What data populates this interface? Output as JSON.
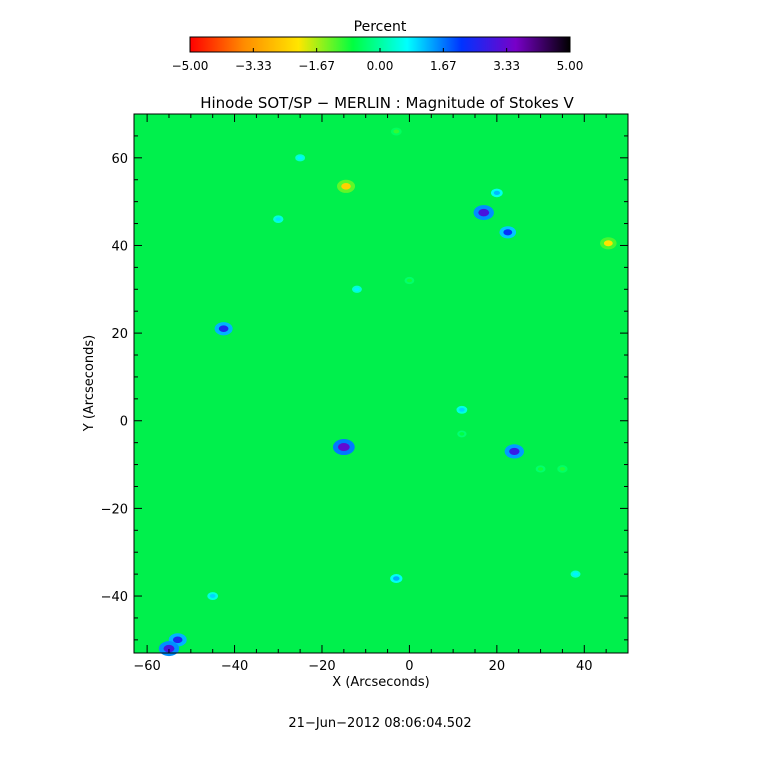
{
  "chart_data": {
    "type": "heatmap",
    "title": "Hinode SOT/SP − MERLIN : Magnitude of Stokes V",
    "xlabel": "X (Arcseconds)",
    "ylabel": "Y (Arcseconds)",
    "xlim": [
      -63,
      50
    ],
    "ylim": [
      -53,
      70
    ],
    "x_ticks": [
      -60,
      -40,
      -20,
      0,
      20,
      40
    ],
    "x_tick_labels": [
      "−60",
      "−40",
      "−20",
      "0",
      "20",
      "40"
    ],
    "y_ticks": [
      -40,
      -20,
      0,
      20,
      40,
      60
    ],
    "y_tick_labels": [
      "−40",
      "−20",
      "0",
      "20",
      "40",
      "60"
    ],
    "background_value": 0.0,
    "features": [
      {
        "x": -15,
        "y": -6,
        "value": 3.3
      },
      {
        "x": 17,
        "y": 47.5,
        "value": 3.0
      },
      {
        "x": 24,
        "y": -7,
        "value": 2.8
      },
      {
        "x": 22.5,
        "y": 43,
        "value": 2.2
      },
      {
        "x": -42.5,
        "y": 21,
        "value": 2.5
      },
      {
        "x": -14.5,
        "y": 53.5,
        "value": -2.5
      },
      {
        "x": 45.5,
        "y": 40.5,
        "value": -2.2
      },
      {
        "x": -53,
        "y": -50,
        "value": 2.5
      },
      {
        "x": -55,
        "y": -52,
        "value": 3.0
      },
      {
        "x": -3,
        "y": -36,
        "value": 1.3
      },
      {
        "x": 12,
        "y": 2.5,
        "value": 1.0
      },
      {
        "x": 20,
        "y": 52,
        "value": 1.2
      },
      {
        "x": -30,
        "y": 46,
        "value": 0.9
      },
      {
        "x": -25,
        "y": 60,
        "value": 0.8
      },
      {
        "x": -12,
        "y": 30,
        "value": 0.8
      },
      {
        "x": 30,
        "y": -11,
        "value": -0.8
      },
      {
        "x": 35,
        "y": -11,
        "value": -0.9
      },
      {
        "x": 12,
        "y": -3,
        "value": -0.7
      },
      {
        "x": -3,
        "y": 66,
        "value": -1.0
      },
      {
        "x": 38,
        "y": -35,
        "value": 0.8
      },
      {
        "x": -45,
        "y": -40,
        "value": 1.0
      },
      {
        "x": 0,
        "y": 32,
        "value": -0.8
      }
    ],
    "colorbar": {
      "title": "Percent",
      "min": -5.0,
      "max": 5.0,
      "tick_labels": [
        "−5.00",
        "−3.33",
        "−1.67",
        "0.00",
        "1.67",
        "3.33",
        "5.00"
      ],
      "colors": [
        "#ff0000",
        "#ff8c00",
        "#ffe600",
        "#00ff40",
        "#00ffff",
        "#0033ff",
        "#7800c8",
        "#000000"
      ]
    }
  },
  "footer": {
    "timestamp": "21−Jun−2012 08:06:04.502"
  }
}
